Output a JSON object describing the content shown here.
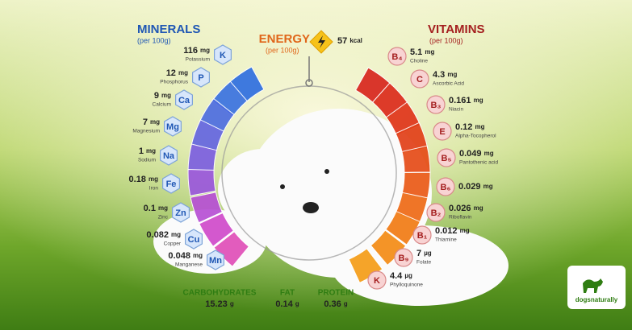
{
  "minerals": {
    "title": "MINERALS",
    "subtitle": "(per 100g)",
    "items": [
      {
        "symbol": "K",
        "amount": "116",
        "unit": "mg",
        "name": "Potassium"
      },
      {
        "symbol": "P",
        "amount": "12",
        "unit": "mg",
        "name": "Phosphorus"
      },
      {
        "symbol": "Ca",
        "amount": "9",
        "unit": "mg",
        "name": "Calcium"
      },
      {
        "symbol": "Mg",
        "amount": "7",
        "unit": "mg",
        "name": "Magnesium"
      },
      {
        "symbol": "Na",
        "amount": "1",
        "unit": "mg",
        "name": "Sodium"
      },
      {
        "symbol": "Fe",
        "amount": "0.18",
        "unit": "mg",
        "name": "Iron"
      },
      {
        "symbol": "Zn",
        "amount": "0.1",
        "unit": "mg",
        "name": "Zinc"
      },
      {
        "symbol": "Cu",
        "amount": "0.082",
        "unit": "mg",
        "name": "Copper"
      },
      {
        "symbol": "Mn",
        "amount": "0.048",
        "unit": "mg",
        "name": "Manganese"
      }
    ]
  },
  "vitamins": {
    "title": "VITAMINS",
    "subtitle": "(per 100g)",
    "items": [
      {
        "symbol": "B₄",
        "amount": "5.1",
        "unit": "mg",
        "name": "Choline"
      },
      {
        "symbol": "C",
        "amount": "4.3",
        "unit": "mg",
        "name": "Ascorbic Acid"
      },
      {
        "symbol": "B₃",
        "amount": "0.161",
        "unit": "mg",
        "name": "Niacin"
      },
      {
        "symbol": "E",
        "amount": "0.12",
        "unit": "mg",
        "name": "Alpha-Tocopherol"
      },
      {
        "symbol": "B₅",
        "amount": "0.049",
        "unit": "mg",
        "name": "Pantothenic acid"
      },
      {
        "symbol": "B₆",
        "amount": "0.029",
        "unit": "mg",
        "name": null
      },
      {
        "symbol": "B₂",
        "amount": "0.026",
        "unit": "mg",
        "name": "Riboflavin"
      },
      {
        "symbol": "B₁",
        "amount": "0.012",
        "unit": "mg",
        "name": "Thiamine"
      },
      {
        "symbol": "B₉",
        "amount": "7",
        "unit": "µg",
        "name": "Folate"
      },
      {
        "symbol": "K",
        "amount": "4.4",
        "unit": "µg",
        "name": "Phylloquinone"
      }
    ]
  },
  "energy": {
    "title": "ENERGY",
    "subtitle": "(per 100g)",
    "amount": "57",
    "unit": "kcal"
  },
  "macros": [
    {
      "label": "CARBOHYDRATES",
      "amount": "15.23",
      "unit": "g"
    },
    {
      "label": "FAT",
      "amount": "0.14",
      "unit": "g"
    },
    {
      "label": "PROTEIN",
      "amount": "0.36",
      "unit": "g"
    }
  ],
  "logo": "dogsnaturally"
}
